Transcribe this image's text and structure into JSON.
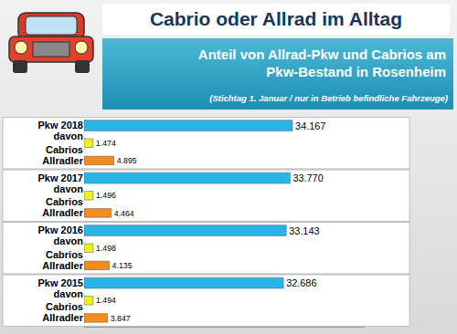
{
  "chart_data": {
    "type": "bar",
    "orientation": "horizontal",
    "title": "Cabrio oder Allrad im Alltag",
    "subtitle": "Anteil von Allrad-Pkw und Cabrios am\nPkw-Bestand in Rosenheim",
    "note": "(Stichtag 1. Januar / nur in Betrieb befindliche Fahrzeuge)",
    "categories": [
      "Pkw 2018",
      "davon Cabrios",
      "Allradler",
      "Pkw 2017",
      "davon Cabrios",
      "Allradler",
      "Pkw 2016",
      "davon Cabrios",
      "Allradler",
      "Pkw 2015",
      "davon Cabrios",
      "Allradler"
    ],
    "values": [
      34167,
      1474,
      4895,
      33770,
      1496,
      4464,
      33143,
      1498,
      4135,
      32686,
      1494,
      3847
    ],
    "value_labels": [
      "34.167",
      "1.474",
      "4.895",
      "33.770",
      "1.496",
      "4.464",
      "33.143",
      "1.498",
      "4.135",
      "32.686",
      "1.494",
      "3.847"
    ],
    "colors": [
      "#29b5e8",
      "#eeee22",
      "#f28c1e",
      "#29b5e8",
      "#eeee22",
      "#f28c1e",
      "#29b5e8",
      "#eeee22",
      "#f28c1e",
      "#29b5e8",
      "#eeee22",
      "#f28c1e"
    ],
    "xlim": [
      0,
      46000
    ],
    "data_labels": true,
    "tick_labels": "y",
    "grid": false
  }
}
